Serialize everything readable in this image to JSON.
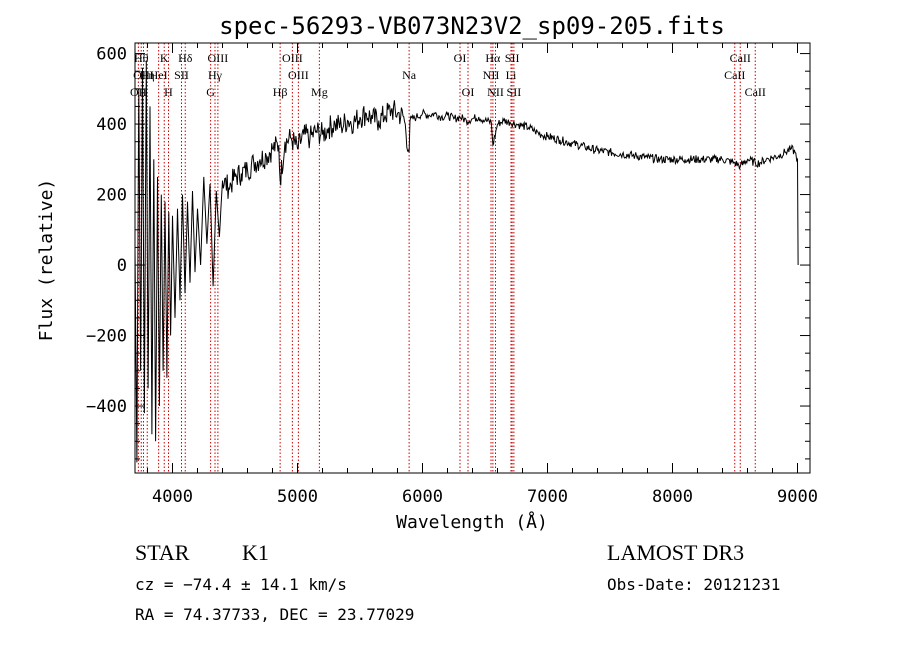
{
  "chart_data": {
    "type": "line",
    "title": "spec-56293-VB073N23V2_sp09-205.fits",
    "xlabel": "Wavelength (Å)",
    "ylabel": "Flux (relative)",
    "xlim": [
      3700,
      9100
    ],
    "ylim": [
      -590,
      630
    ],
    "xticks": [
      {
        "value": 4000,
        "label": "4000"
      },
      {
        "value": 5000,
        "label": "5000"
      },
      {
        "value": 6000,
        "label": "6000"
      },
      {
        "value": 7000,
        "label": "7000"
      },
      {
        "value": 8000,
        "label": "8000"
      },
      {
        "value": 9000,
        "label": "9000"
      }
    ],
    "yticks": [
      {
        "value": 600,
        "label": "600"
      },
      {
        "value": 400,
        "label": "400"
      },
      {
        "value": 200,
        "label": "200"
      },
      {
        "value": 0,
        "label": "0"
      },
      {
        "value": -200,
        "label": "−200"
      },
      {
        "value": -400,
        "label": "−400"
      }
    ],
    "series": [
      {
        "name": "flux",
        "x": [
          3700,
          3715,
          3730,
          3745,
          3760,
          3775,
          3790,
          3805,
          3820,
          3835,
          3850,
          3865,
          3880,
          3895,
          3910,
          3925,
          3940,
          3955,
          3970,
          3985,
          4000,
          4020,
          4040,
          4060,
          4080,
          4100,
          4120,
          4140,
          4160,
          4180,
          4200,
          4225,
          4250,
          4275,
          4300,
          4325,
          4350,
          4375,
          4400,
          4450,
          4500,
          4550,
          4600,
          4650,
          4700,
          4750,
          4800,
          4850,
          4861,
          4900,
          4950,
          5000,
          5050,
          5100,
          5150,
          5200,
          5250,
          5300,
          5350,
          5400,
          5450,
          5500,
          5550,
          5600,
          5650,
          5700,
          5750,
          5800,
          5850,
          5893,
          5900,
          5950,
          6000,
          6050,
          6100,
          6150,
          6200,
          6250,
          6300,
          6350,
          6400,
          6450,
          6500,
          6550,
          6563,
          6600,
          6650,
          6700,
          6750,
          6800,
          6850,
          6900,
          6950,
          7000,
          7100,
          7200,
          7300,
          7400,
          7500,
          7600,
          7700,
          7800,
          7900,
          8000,
          8100,
          8200,
          8300,
          8400,
          8498,
          8542,
          8600,
          8662,
          8700,
          8750,
          8800,
          8850,
          8900,
          8950,
          8980,
          9000,
          9005
        ],
        "y": [
          50,
          -560,
          500,
          -300,
          560,
          -420,
          580,
          -350,
          450,
          -480,
          300,
          -500,
          250,
          -400,
          200,
          -300,
          180,
          -320,
          150,
          -200,
          140,
          -150,
          160,
          -100,
          200,
          -80,
          180,
          -50,
          210,
          -20,
          160,
          0,
          250,
          60,
          230,
          -60,
          210,
          80,
          240,
          220,
          250,
          260,
          270,
          290,
          300,
          310,
          330,
          340,
          240,
          350,
          360,
          330,
          370,
          360,
          380,
          370,
          390,
          400,
          395,
          410,
          405,
          420,
          430,
          415,
          410,
          425,
          440,
          430,
          420,
          320,
          410,
          420,
          430,
          425,
          430,
          420,
          425,
          415,
          420,
          410,
          415,
          420,
          410,
          405,
          340,
          400,
          410,
          405,
          400,
          395,
          390,
          380,
          370,
          365,
          355,
          345,
          335,
          325,
          320,
          315,
          310,
          305,
          300,
          300,
          300,
          300,
          300,
          300,
          290,
          280,
          300,
          290,
          290,
          300,
          305,
          310,
          320,
          330,
          320,
          300,
          0
        ]
      }
    ],
    "lines": [
      {
        "label": "OII",
        "x": 3727,
        "row": 2
      },
      {
        "label": "Hθ",
        "x": 3750,
        "row": 0
      },
      {
        "label": "OIII",
        "x": 3768,
        "row": 1
      },
      {
        "label": "Hη",
        "x": 3798,
        "row": 1
      },
      {
        "label": "K",
        "x": 3934,
        "row": 0
      },
      {
        "label": "H",
        "x": 3968,
        "row": 2
      },
      {
        "label": "HeI",
        "x": 3889,
        "row": 1
      },
      {
        "label": "SII",
        "x": 4072,
        "row": 1
      },
      {
        "label": "Hδ",
        "x": 4102,
        "row": 0
      },
      {
        "label": "OIII",
        "x": 4363,
        "row": 0
      },
      {
        "label": "Hγ",
        "x": 4340,
        "row": 1
      },
      {
        "label": "G",
        "x": 4305,
        "row": 2
      },
      {
        "label": "Hβ",
        "x": 4861,
        "row": 2
      },
      {
        "label": "OIII",
        "x": 4959,
        "row": 0
      },
      {
        "label": "OIII",
        "x": 5007,
        "row": 1
      },
      {
        "label": "Mg",
        "x": 5175,
        "row": 2
      },
      {
        "label": "Na",
        "x": 5893,
        "row": 1
      },
      {
        "label": "OI",
        "x": 6300,
        "row": 0
      },
      {
        "label": "OI",
        "x": 6364,
        "row": 2
      },
      {
        "label": "Hα",
        "x": 6563,
        "row": 0
      },
      {
        "label": "NII",
        "x": 6548,
        "row": 1
      },
      {
        "label": "NII",
        "x": 6584,
        "row": 2
      },
      {
        "label": "SII",
        "x": 6717,
        "row": 0
      },
      {
        "label": "Li",
        "x": 6708,
        "row": 1
      },
      {
        "label": "SII",
        "x": 6731,
        "row": 2
      },
      {
        "label": "CaII",
        "x": 8542,
        "row": 0
      },
      {
        "label": "CaII",
        "x": 8498,
        "row": 1
      },
      {
        "label": "CaII",
        "x": 8662,
        "row": 2
      }
    ]
  },
  "info": {
    "class_label": "STAR",
    "subclass": "K1",
    "survey": "LAMOST DR3",
    "cz": "cz = −74.4 ± 14.1 km/s",
    "obs_date": "Obs-Date: 20121231",
    "coords": "RA =  74.37733, DEC =  23.77029"
  },
  "colors": {
    "spectrum": "#000000",
    "line_markers": "#cc0000",
    "axes": "#000000",
    "background": "#ffffff"
  }
}
